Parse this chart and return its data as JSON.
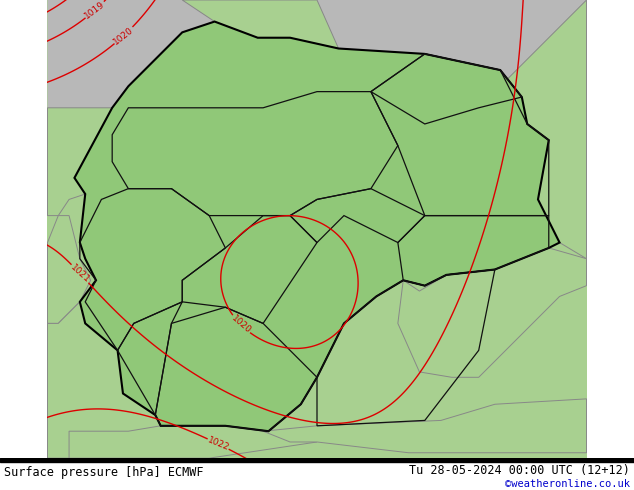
{
  "title_left": "Surface pressure [hPa] ECMWF",
  "title_right": "Tu 28-05-2024 00:00 UTC (12+12)",
  "credit": "©weatheronline.co.uk",
  "figsize": [
    6.34,
    4.9
  ],
  "dpi": 100,
  "color_ocean_gray": "#b8b8b8",
  "color_land_green": "#a8d090",
  "color_germany_green": "#90c878",
  "color_border_country": "#888888",
  "color_border_germany": "#000000",
  "color_contour_red": "#dd0000",
  "color_contour_black": "#000000",
  "color_contour_blue": "#0044ff",
  "color_label_red": "#cc0000",
  "color_label_black": "#000000",
  "color_label_blue": "#0044ff",
  "bottom_bg": "#ffffff",
  "bottom_text_left_color": "#000000",
  "bottom_text_right_color": "#000000",
  "bottom_credit_color": "#0000cc",
  "map_lon_min": 5.5,
  "map_lon_max": 15.5,
  "map_lat_min": 47.0,
  "map_lat_max": 55.5
}
